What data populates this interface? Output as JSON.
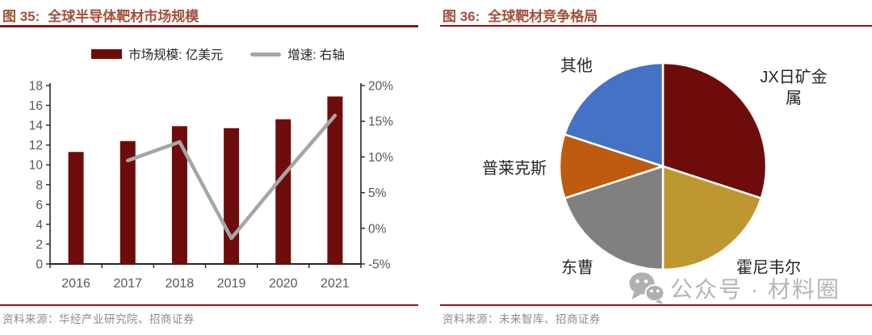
{
  "figures": [
    {
      "prefix": "图 35:",
      "title": "全球半导体靶材市场规模",
      "source": "资料来源：华经产业研究院、招商证券"
    },
    {
      "prefix": "图 36:",
      "title": "全球靶材竞争格局",
      "source": "资料来源：未来智库、招商证券"
    }
  ],
  "watermark": {
    "icon": "wechat-icon",
    "text": "公众号 · 材料圈",
    "color": "#B5B5B5"
  },
  "colors": {
    "title_text": "#A2503A",
    "heading_rule": "#8B1414",
    "axis_line": "#262626",
    "tick_label": "#595959",
    "source_text": "#8C8C8C",
    "bar": "#6E0C0C",
    "growth_line": "#A6A6A6"
  },
  "chart_data": [
    {
      "type": "bar",
      "subtype": "combo-bar-line",
      "title": "全球半导体靶材市场规模",
      "categories": [
        "2016",
        "2017",
        "2018",
        "2019",
        "2020",
        "2021"
      ],
      "series": [
        {
          "name": "市场规模: 亿美元",
          "type": "bar",
          "axis": "left",
          "color": "#6E0C0C",
          "values": [
            11.3,
            12.4,
            13.9,
            13.7,
            14.6,
            16.9
          ]
        },
        {
          "name": "增速: 右轴",
          "type": "line",
          "axis": "right",
          "color": "#A6A6A6",
          "unit": "%",
          "values": [
            null,
            9.5,
            12.1,
            -1.4,
            7.4,
            15.8
          ]
        }
      ],
      "left_axis": {
        "min": 0,
        "max": 18,
        "step": 2,
        "ticks": [
          "0",
          "2",
          "4",
          "6",
          "8",
          "10",
          "12",
          "14",
          "16",
          "18"
        ]
      },
      "right_axis": {
        "min": -5,
        "max": 20,
        "step": 5,
        "ticks": [
          "-5%",
          "0%",
          "5%",
          "10%",
          "15%",
          "20%"
        ]
      },
      "grid": false,
      "legend_position": "top"
    },
    {
      "type": "pie",
      "title": "全球靶材竞争格局",
      "start_angle": "12-oclock",
      "direction": "clockwise",
      "unit": "share-percent-estimated",
      "slices": [
        {
          "label": "JX日矿金属",
          "value": 30,
          "color": "#6E0C0C"
        },
        {
          "label": "霍尼韦尔",
          "value": 20,
          "color": "#BF9730"
        },
        {
          "label": "东曹",
          "value": 20,
          "color": "#808080"
        },
        {
          "label": "普莱克斯",
          "value": 10,
          "color": "#BF5B0E"
        },
        {
          "label": "其他",
          "value": 20,
          "color": "#4472C4"
        }
      ]
    }
  ]
}
